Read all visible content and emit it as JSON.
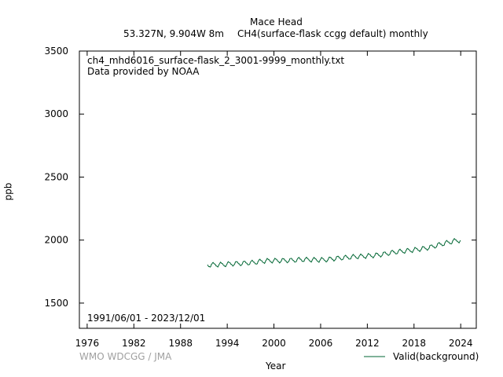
{
  "header": {
    "station": "Mace Head",
    "location": "53.327N, 9.904W 8m",
    "parameter": "CH4(surface-flask ccgg default) monthly"
  },
  "plot_info": {
    "filename": "ch4_mhd6016_surface-flask_2_3001-9999_monthly.txt",
    "provider": "Data provided by NOAA",
    "period": "1991/06/01 - 2023/12/01"
  },
  "footer": {
    "credit": "WMO WDCGG / JMA"
  },
  "colors": {
    "series": "#006633",
    "credit": "#a0a0a0",
    "axes": "#000000"
  },
  "chart_data": {
    "type": "line",
    "title": "Mace Head",
    "xlabel": "Year",
    "ylabel": "ppb",
    "xlim": [
      1975,
      2026
    ],
    "ylim": [
      1300,
      3500
    ],
    "x_ticks": [
      1976,
      1982,
      1988,
      1994,
      2000,
      2006,
      2012,
      2018,
      2024
    ],
    "y_ticks": [
      1500,
      2000,
      2500,
      3000,
      3500
    ],
    "grid": false,
    "legend_position": "bottom-right",
    "series": [
      {
        "name": "Valid(background)",
        "x_start": "1991-06",
        "x_end": "2023-12",
        "annual_mean": [
          [
            1991,
            1802
          ],
          [
            1992,
            1805
          ],
          [
            1993,
            1806
          ],
          [
            1994,
            1812
          ],
          [
            1995,
            1814
          ],
          [
            1996,
            1818
          ],
          [
            1997,
            1823
          ],
          [
            1998,
            1833
          ],
          [
            1999,
            1837
          ],
          [
            2000,
            1837
          ],
          [
            2001,
            1838
          ],
          [
            2002,
            1840
          ],
          [
            2003,
            1846
          ],
          [
            2004,
            1845
          ],
          [
            2005,
            1843
          ],
          [
            2006,
            1843
          ],
          [
            2007,
            1851
          ],
          [
            2008,
            1858
          ],
          [
            2009,
            1863
          ],
          [
            2010,
            1869
          ],
          [
            2011,
            1872
          ],
          [
            2012,
            1876
          ],
          [
            2013,
            1882
          ],
          [
            2014,
            1893
          ],
          [
            2015,
            1905
          ],
          [
            2016,
            1911
          ],
          [
            2017,
            1918
          ],
          [
            2018,
            1926
          ],
          [
            2019,
            1935
          ],
          [
            2020,
            1950
          ],
          [
            2021,
            1968
          ],
          [
            2022,
            1983
          ],
          [
            2023,
            1997
          ]
        ],
        "seasonal_amplitude": 16
      }
    ]
  }
}
